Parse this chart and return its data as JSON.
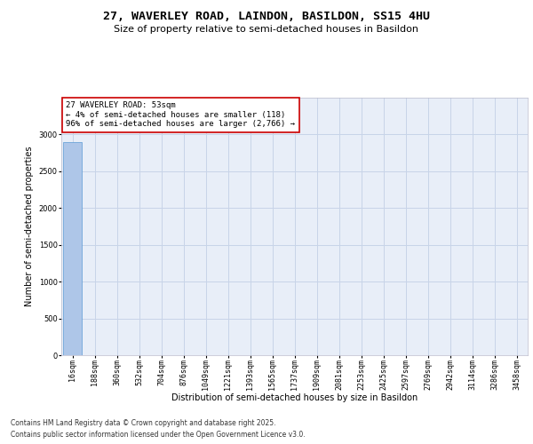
{
  "title_line1": "27, WAVERLEY ROAD, LAINDON, BASILDON, SS15 4HU",
  "title_line2": "Size of property relative to semi-detached houses in Basildon",
  "xlabel": "Distribution of semi-detached houses by size in Basildon",
  "ylabel": "Number of semi-detached properties",
  "annotation_title": "27 WAVERLEY ROAD: 53sqm",
  "annotation_line2": "← 4% of semi-detached houses are smaller (118)",
  "annotation_line3": "96% of semi-detached houses are larger (2,766) →",
  "footer_line1": "Contains HM Land Registry data © Crown copyright and database right 2025.",
  "footer_line2": "Contains public sector information licensed under the Open Government Licence v3.0.",
  "categories": [
    "16sqm",
    "188sqm",
    "360sqm",
    "532sqm",
    "704sqm",
    "876sqm",
    "1049sqm",
    "1221sqm",
    "1393sqm",
    "1565sqm",
    "1737sqm",
    "1909sqm",
    "2081sqm",
    "2253sqm",
    "2425sqm",
    "2597sqm",
    "2769sqm",
    "2942sqm",
    "3114sqm",
    "3286sqm",
    "3458sqm"
  ],
  "values": [
    2900,
    4,
    1,
    0,
    0,
    0,
    0,
    0,
    0,
    0,
    0,
    0,
    0,
    0,
    0,
    0,
    0,
    0,
    0,
    0,
    0
  ],
  "bar_color": "#aec6e8",
  "bar_edge_color": "#5b9bd5",
  "annotation_box_color": "#cc0000",
  "grid_color": "#c8d4e8",
  "background_color": "#e8eef8",
  "ylim": [
    0,
    3500
  ],
  "yticks": [
    0,
    500,
    1000,
    1500,
    2000,
    2500,
    3000
  ],
  "title_fontsize": 9.5,
  "subtitle_fontsize": 8,
  "axis_label_fontsize": 7,
  "tick_fontsize": 6,
  "annotation_fontsize": 6.5,
  "footer_fontsize": 5.5
}
